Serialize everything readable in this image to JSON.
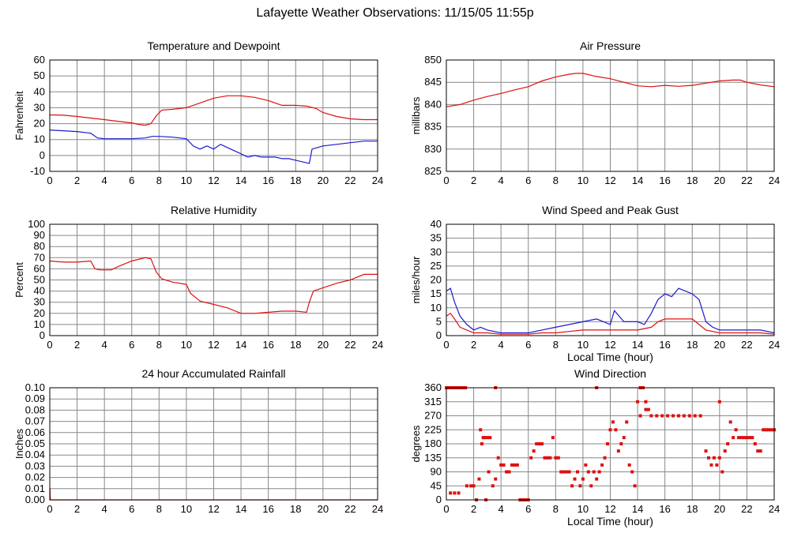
{
  "page": {
    "title": "Lafayette Weather Observations: 11/15/05 11:55p"
  },
  "colors": {
    "red": "#dd1111",
    "blue": "#1a1ad0",
    "grid": "#888888",
    "frame": "#000000"
  },
  "chart_data": [
    {
      "id": "temperature",
      "type": "line",
      "title": "Temperature and Dewpoint",
      "xlabel": "",
      "ylabel": "Fahrenheit",
      "xlim": [
        0,
        24
      ],
      "ylim": [
        -10,
        60
      ],
      "xticks": [
        0,
        2,
        4,
        6,
        8,
        10,
        12,
        14,
        16,
        18,
        20,
        22,
        24
      ],
      "yticks": [
        -10,
        0,
        10,
        20,
        30,
        40,
        50,
        60
      ],
      "grid": true,
      "series": [
        {
          "color": "#dd1111",
          "style": "line",
          "x": [
            0,
            1,
            2,
            3,
            4,
            5,
            6,
            6.5,
            7,
            7.4,
            7.8,
            8.2,
            9,
            10,
            11,
            12,
            13,
            14,
            15,
            16,
            16.5,
            17,
            18,
            18.8,
            19.5,
            20,
            21,
            22,
            23,
            24
          ],
          "y": [
            25.5,
            25.3,
            24.5,
            23.5,
            22.5,
            21.5,
            20.5,
            19.5,
            19,
            20,
            25,
            28.5,
            29,
            30,
            33,
            36,
            37.5,
            37.5,
            36.5,
            34.5,
            33,
            31.5,
            31.5,
            31,
            29.5,
            27,
            24.5,
            23,
            22.5,
            22.5
          ]
        },
        {
          "color": "#1a1ad0",
          "style": "line",
          "x": [
            0,
            1,
            2,
            3,
            3.5,
            4,
            5,
            6,
            7,
            7.5,
            8,
            9,
            10,
            10.5,
            11,
            11.5,
            12,
            12.5,
            13,
            13.5,
            14,
            14.5,
            15,
            15.5,
            16,
            16.5,
            17,
            17.5,
            18,
            18.5,
            19,
            19.2,
            20,
            21,
            22,
            23,
            24
          ],
          "y": [
            16,
            15.5,
            15,
            14,
            11,
            10.5,
            10.5,
            10.5,
            11,
            12,
            12,
            11.5,
            10.5,
            6,
            4,
            6,
            4,
            7,
            5,
            3,
            1,
            -1,
            0,
            -1,
            -1,
            -1,
            -2,
            -2,
            -3,
            -4,
            -5,
            4,
            6,
            7,
            8,
            9,
            9
          ]
        }
      ]
    },
    {
      "id": "pressure",
      "type": "line",
      "title": "Air Pressure",
      "xlabel": "",
      "ylabel": "millibars",
      "xlim": [
        0,
        24
      ],
      "ylim": [
        825,
        850
      ],
      "xticks": [
        0,
        2,
        4,
        6,
        8,
        10,
        12,
        14,
        16,
        18,
        20,
        22,
        24
      ],
      "yticks": [
        825,
        830,
        835,
        840,
        845,
        850
      ],
      "grid": true,
      "series": [
        {
          "color": "#dd1111",
          "style": "line",
          "x": [
            0,
            1,
            2,
            3,
            4,
            5,
            6,
            7,
            8,
            9,
            9.5,
            10,
            11,
            12,
            13,
            14,
            15,
            16,
            17,
            18,
            19,
            20,
            21,
            21.5,
            22,
            23,
            24
          ],
          "y": [
            839.5,
            840,
            841,
            841.8,
            842.5,
            843.3,
            844,
            845.3,
            846.2,
            846.8,
            847,
            847,
            846.3,
            845.8,
            845,
            844.2,
            844,
            844.3,
            844.1,
            844.3,
            844.8,
            845.3,
            845.5,
            845.5,
            845,
            844.4,
            844
          ]
        }
      ]
    },
    {
      "id": "humidity",
      "type": "line",
      "title": "Relative Humidity",
      "xlabel": "",
      "ylabel": "Percent",
      "xlim": [
        0,
        24
      ],
      "ylim": [
        0,
        100
      ],
      "xticks": [
        0,
        2,
        4,
        6,
        8,
        10,
        12,
        14,
        16,
        18,
        20,
        22,
        24
      ],
      "yticks": [
        0,
        10,
        20,
        30,
        40,
        50,
        60,
        70,
        80,
        90,
        100
      ],
      "grid": true,
      "series": [
        {
          "color": "#dd1111",
          "style": "line",
          "x": [
            0,
            1,
            2,
            3,
            3.3,
            3.7,
            4.5,
            5,
            6,
            7,
            7.4,
            7.8,
            8.2,
            9,
            10,
            10.3,
            11,
            12,
            13,
            14,
            15,
            16,
            17,
            18,
            18.8,
            19,
            19.3,
            20,
            21,
            22,
            23,
            24
          ],
          "y": [
            67,
            66,
            66,
            67,
            60,
            59,
            59,
            62,
            67,
            70,
            69,
            57,
            51,
            48,
            46,
            38,
            31,
            28,
            25,
            20,
            20,
            21,
            22,
            22,
            21,
            30,
            40,
            43,
            47,
            50,
            55,
            55
          ]
        }
      ]
    },
    {
      "id": "wind",
      "type": "line",
      "title": "Wind Speed and Peak Gust",
      "xlabel": "Local Time (hour)",
      "ylabel": "miles/hour",
      "xlim": [
        0,
        24
      ],
      "ylim": [
        0,
        40
      ],
      "xticks": [
        0,
        2,
        4,
        6,
        8,
        10,
        12,
        14,
        16,
        18,
        20,
        22,
        24
      ],
      "yticks": [
        0,
        5,
        10,
        15,
        20,
        25,
        30,
        35,
        40
      ],
      "grid": true,
      "series": [
        {
          "color": "#1a1ad0",
          "style": "line",
          "x": [
            0,
            0.3,
            0.6,
            1,
            1.5,
            2,
            2.5,
            3,
            4,
            5,
            6,
            7,
            8,
            9,
            10,
            11,
            12,
            12.3,
            13,
            14,
            14.5,
            15,
            15.5,
            16,
            16.5,
            17,
            17.5,
            18,
            18.5,
            19,
            19.5,
            20,
            21,
            22,
            23,
            24
          ],
          "y": [
            16,
            17,
            12,
            7,
            4,
            2,
            3,
            2,
            1,
            1,
            1,
            2,
            3,
            4,
            5,
            6,
            4,
            9,
            5,
            5,
            4,
            8,
            13,
            15,
            14,
            17,
            16,
            15,
            13,
            5,
            3,
            2,
            2,
            2,
            2,
            1
          ]
        },
        {
          "color": "#dd1111",
          "style": "line",
          "x": [
            0,
            0.3,
            0.6,
            1,
            1.5,
            2,
            3,
            4,
            5,
            6,
            7,
            8,
            9,
            10,
            11,
            12,
            13,
            14,
            15,
            15.5,
            16,
            17,
            18,
            18.5,
            19,
            20,
            21,
            22,
            23,
            24
          ],
          "y": [
            7,
            8,
            6,
            3,
            2,
            1,
            1,
            0.5,
            0.5,
            0.5,
            1,
            1,
            1.5,
            2,
            2,
            2,
            2,
            2,
            3,
            5,
            6,
            6,
            6,
            4,
            2,
            1,
            1,
            1,
            1,
            0.5
          ]
        }
      ]
    },
    {
      "id": "rainfall",
      "type": "line",
      "title": "24 hour Accumulated Rainfall",
      "xlabel": "",
      "ylabel": "Inches",
      "xlim": [
        0,
        24
      ],
      "ylim": [
        0,
        0.1
      ],
      "xticks": [
        0,
        2,
        4,
        6,
        8,
        10,
        12,
        14,
        16,
        18,
        20,
        22,
        24
      ],
      "yticks": [
        0.0,
        0.01,
        0.02,
        0.03,
        0.04,
        0.05,
        0.06,
        0.07,
        0.08,
        0.09,
        0.1
      ],
      "ytick_labels": [
        "0.00",
        "0.01",
        "0.02",
        "0.03",
        "0.04",
        "0.05",
        "0.06",
        "0.07",
        "0.08",
        "0.09",
        "0.10"
      ],
      "grid": true,
      "series": [
        {
          "color": "#dd1111",
          "style": "line",
          "x": [
            0,
            0.02,
            0.04,
            24
          ],
          "y": [
            0.01,
            0.01,
            0,
            0
          ]
        }
      ]
    },
    {
      "id": "direction",
      "type": "scatter",
      "title": "Wind Direction",
      "xlabel": "Local Time (hour)",
      "ylabel": "degrees",
      "xlim": [
        0,
        24
      ],
      "ylim": [
        0,
        360
      ],
      "xticks": [
        0,
        2,
        4,
        6,
        8,
        10,
        12,
        14,
        16,
        18,
        20,
        22,
        24
      ],
      "yticks": [
        0,
        45,
        90,
        135,
        180,
        225,
        270,
        315,
        360
      ],
      "grid": true,
      "series": [
        {
          "color": "#dd1111",
          "style": "points",
          "x": [
            0,
            0.2,
            0.4,
            0.6,
            0.8,
            1,
            1.2,
            1.4,
            0.3,
            0.6,
            0.9,
            1.5,
            1.8,
            2,
            2.2,
            2.4,
            2.6,
            2.8,
            3,
            3.2,
            2.5,
            2.7,
            2.9,
            3.1,
            3.4,
            3.6,
            3.8,
            4,
            4.2,
            4.4,
            4.6,
            4.8,
            5,
            5.2,
            5.4,
            5.6,
            5.8,
            6,
            6.2,
            6.4,
            6.6,
            6.8,
            7,
            7.2,
            7.4,
            7.6,
            7.8,
            8,
            8.2,
            8.4,
            8.6,
            8.8,
            9,
            9.2,
            9.4,
            9.6,
            9.8,
            10,
            10.2,
            10.4,
            10.6,
            10.8,
            11,
            11.2,
            11.4,
            11.6,
            11.8,
            12,
            12.2,
            12.4,
            12.6,
            12.8,
            13,
            13.2,
            13.4,
            13.6,
            13.8,
            14,
            14.2,
            14.4,
            14.6,
            14.8,
            15,
            15.4,
            15.8,
            16.2,
            16.6,
            17,
            17.4,
            17.8,
            18.2,
            18.6,
            19,
            19.2,
            19.4,
            19.6,
            19.8,
            20,
            20.2,
            20.4,
            20.6,
            20.8,
            21,
            21.2,
            21.4,
            21.6,
            21.8,
            22,
            22.2,
            22.4,
            22.6,
            22.8,
            23,
            23.2,
            23.4,
            23.6,
            23.8,
            24,
            3.6,
            11,
            14.2,
            14.6,
            20
          ],
          "y": [
            360,
            360,
            360,
            360,
            360,
            360,
            360,
            360,
            22,
            22,
            22,
            45,
            45,
            45,
            0,
            67,
            180,
            200,
            200,
            200,
            225,
            200,
            0,
            90,
            45,
            67,
            135,
            112,
            112,
            90,
            90,
            112,
            112,
            112,
            0,
            0,
            0,
            0,
            135,
            157,
            180,
            180,
            180,
            135,
            135,
            135,
            200,
            135,
            135,
            90,
            90,
            90,
            90,
            45,
            67,
            90,
            45,
            67,
            112,
            90,
            45,
            90,
            67,
            90,
            112,
            135,
            180,
            225,
            250,
            225,
            157,
            180,
            200,
            250,
            112,
            90,
            45,
            315,
            270,
            360,
            290,
            290,
            270,
            270,
            270,
            270,
            270,
            270,
            270,
            270,
            270,
            270,
            157,
            135,
            112,
            135,
            112,
            135,
            90,
            157,
            180,
            250,
            200,
            225,
            200,
            200,
            200,
            200,
            200,
            200,
            180,
            157,
            157,
            225,
            225,
            225,
            225,
            225,
            360,
            360,
            360,
            315,
            315
          ]
        }
      ]
    }
  ]
}
